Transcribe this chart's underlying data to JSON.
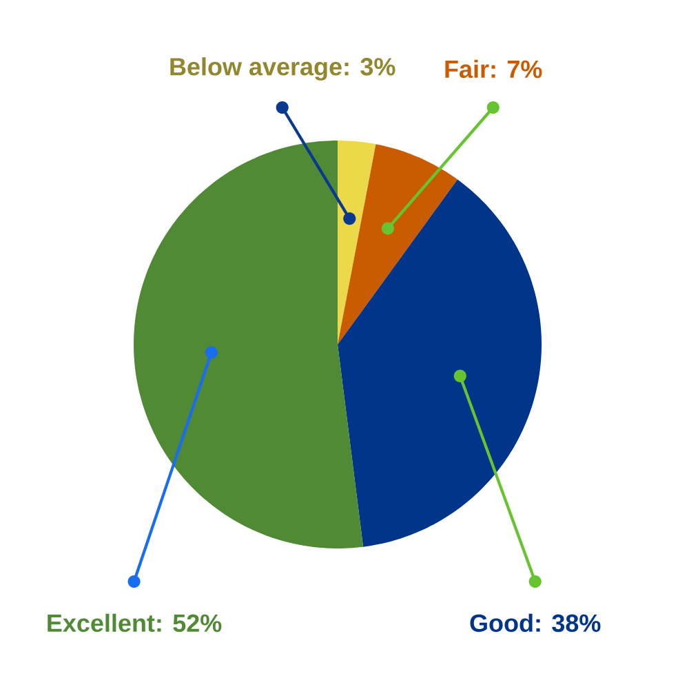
{
  "chart_data": {
    "type": "pie",
    "categories": [
      "Below average: 3%",
      "Fair: 7%",
      "Good: 38%",
      "Excellent: 52%"
    ],
    "values": [
      3,
      7,
      38,
      52
    ],
    "colors": [
      "#ecd94a",
      "#c95c00",
      "#00358a",
      "#508a34"
    ]
  }
}
